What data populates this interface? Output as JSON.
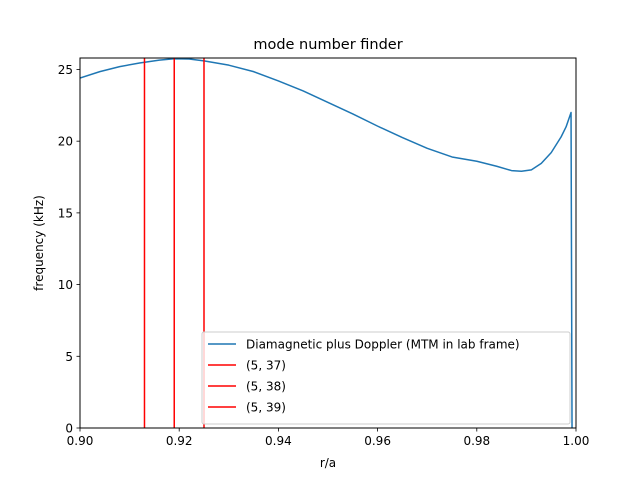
{
  "chart_data": {
    "type": "line",
    "title": "mode number finder",
    "xlabel": "r/a",
    "ylabel": "frequency (kHz)",
    "xlim": [
      0.9,
      1.0
    ],
    "ylim": [
      0,
      25.8
    ],
    "xticks": [
      0.9,
      0.92,
      0.94,
      0.96,
      0.98,
      1.0
    ],
    "xtick_labels": [
      "0.90",
      "0.92",
      "0.94",
      "0.96",
      "0.98",
      "1.00"
    ],
    "yticks": [
      0,
      5,
      10,
      15,
      20,
      25
    ],
    "ytick_labels": [
      "0",
      "5",
      "10",
      "15",
      "20",
      "25"
    ],
    "grid": false,
    "legend_position": "lower-right",
    "series": [
      {
        "name": "Diamagnetic plus Doppler (MTM in lab frame)",
        "color": "#1f77b4",
        "points": [
          [
            0.9,
            24.4
          ],
          [
            0.904,
            24.85
          ],
          [
            0.908,
            25.2
          ],
          [
            0.912,
            25.45
          ],
          [
            0.916,
            25.65
          ],
          [
            0.919,
            25.75
          ],
          [
            0.922,
            25.73
          ],
          [
            0.925,
            25.6
          ],
          [
            0.93,
            25.3
          ],
          [
            0.935,
            24.85
          ],
          [
            0.94,
            24.2
          ],
          [
            0.945,
            23.5
          ],
          [
            0.95,
            22.7
          ],
          [
            0.955,
            21.9
          ],
          [
            0.96,
            21.05
          ],
          [
            0.965,
            20.25
          ],
          [
            0.97,
            19.5
          ],
          [
            0.975,
            18.9
          ],
          [
            0.98,
            18.6
          ],
          [
            0.984,
            18.25
          ],
          [
            0.987,
            17.95
          ],
          [
            0.989,
            17.9
          ],
          [
            0.991,
            18.0
          ],
          [
            0.993,
            18.45
          ],
          [
            0.995,
            19.2
          ],
          [
            0.997,
            20.3
          ],
          [
            0.998,
            21.0
          ],
          [
            0.999,
            22.0
          ],
          [
            0.9992,
            0.0
          ]
        ]
      },
      {
        "name": "(5, 37)",
        "color": "#ff0000",
        "type": "vline",
        "x": 0.913
      },
      {
        "name": "(5, 38)",
        "color": "#ff0000",
        "type": "vline",
        "x": 0.919
      },
      {
        "name": "(5, 39)",
        "color": "#ff0000",
        "type": "vline",
        "x": 0.925
      }
    ]
  }
}
